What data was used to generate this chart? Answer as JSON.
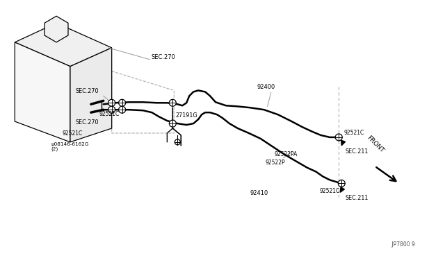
{
  "bg_color": "#ffffff",
  "line_color": "#000000",
  "fig_width": 6.4,
  "fig_height": 3.72,
  "watermark": ".JP7800 9",
  "labels": {
    "SEC270_top": "SEC.270",
    "SEC270_mid": "SEC.270",
    "SEC270_low": "SEC.270",
    "92521C_1": "92521C",
    "92521C_2": "92521C",
    "92521C_3": "92521C",
    "92521C_4": "92521C",
    "27191G": "27191G",
    "92400": "92400",
    "92410": "92410",
    "92522PA": "92522PA",
    "92522P": "92522P",
    "SEC211_1": "SEC.211",
    "SEC211_2": "SEC.211",
    "bolt": "µ08146-6162G\n(2)"
  }
}
